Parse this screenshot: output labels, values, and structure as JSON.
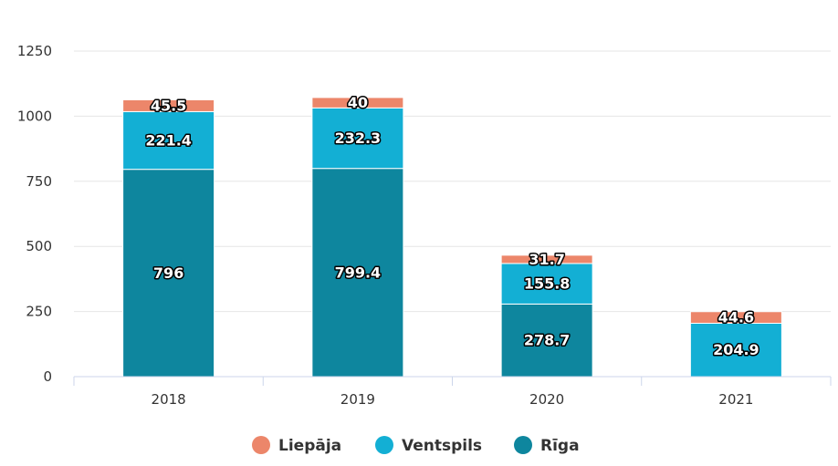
{
  "chart_data": {
    "type": "bar",
    "stacked": true,
    "categories": [
      "2018",
      "2019",
      "2020",
      "2021"
    ],
    "series": [
      {
        "name": "Rīga",
        "color": "#0e869e",
        "values": [
          796,
          799.4,
          278.7,
          null
        ]
      },
      {
        "name": "Ventspils",
        "color": "#13afd4",
        "values": [
          221.4,
          232.3,
          155.8,
          204.9
        ]
      },
      {
        "name": "Liepāja",
        "color": "#ec866a",
        "values": [
          45.5,
          40,
          31.7,
          44.6
        ]
      }
    ],
    "y_ticks": [
      0,
      250,
      500,
      750,
      1000,
      1250
    ],
    "ylim": [
      0,
      1250
    ],
    "grid": true,
    "legend": {
      "position": "bottom-center",
      "order": [
        "Liepāja",
        "Ventspils",
        "Rīga"
      ]
    }
  }
}
